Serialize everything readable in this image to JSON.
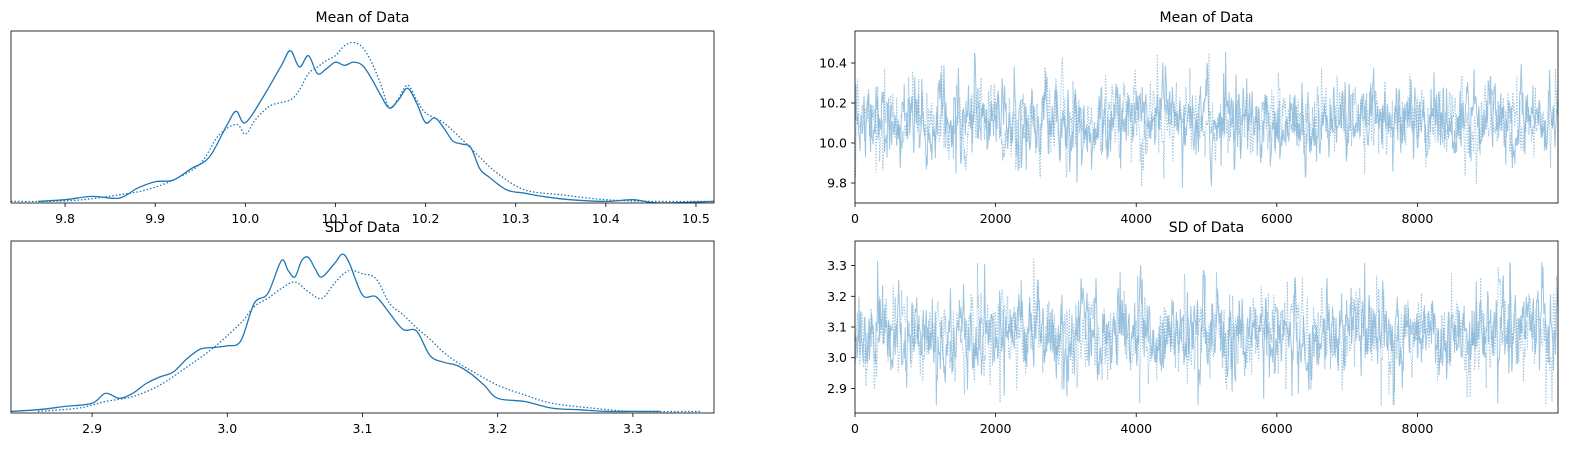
{
  "chart_data": [
    {
      "type": "line",
      "title": "Mean of Data",
      "xlim": [
        9.74,
        10.52
      ],
      "ylim": [
        0,
        1.05
      ],
      "xticks": [
        9.8,
        9.9,
        10.0,
        10.1,
        10.2,
        10.3,
        10.4,
        10.5
      ],
      "xtick_labels": [
        "9.8",
        "9.9",
        "10.0",
        "10.1",
        "10.2",
        "10.3",
        "10.4",
        "10.5"
      ],
      "yticks_shown": false,
      "series": [
        {
          "style": "solid",
          "x": [
            9.77,
            9.8,
            9.83,
            9.86,
            9.88,
            9.9,
            9.92,
            9.94,
            9.96,
            9.98,
            9.99,
            10.0,
            10.02,
            10.04,
            10.05,
            10.06,
            10.07,
            10.08,
            10.09,
            10.1,
            10.11,
            10.12,
            10.13,
            10.14,
            10.15,
            10.16,
            10.17,
            10.18,
            10.19,
            10.2,
            10.21,
            10.22,
            10.23,
            10.24,
            10.25,
            10.26,
            10.27,
            10.29,
            10.31,
            10.33,
            10.36,
            10.4,
            10.43,
            10.46,
            10.52
          ],
          "y": [
            0.01,
            0.02,
            0.04,
            0.03,
            0.09,
            0.13,
            0.14,
            0.21,
            0.28,
            0.48,
            0.56,
            0.49,
            0.65,
            0.84,
            0.93,
            0.83,
            0.9,
            0.79,
            0.82,
            0.86,
            0.84,
            0.86,
            0.84,
            0.76,
            0.66,
            0.58,
            0.63,
            0.7,
            0.61,
            0.49,
            0.52,
            0.46,
            0.38,
            0.36,
            0.34,
            0.21,
            0.16,
            0.08,
            0.06,
            0.04,
            0.02,
            0.01,
            0.02,
            0.0,
            0.01
          ]
        },
        {
          "style": "dotted",
          "x": [
            9.74,
            9.78,
            9.82,
            9.86,
            9.89,
            9.92,
            9.95,
            9.97,
            9.99,
            10.0,
            10.01,
            10.02,
            10.03,
            10.05,
            10.06,
            10.07,
            10.08,
            10.09,
            10.1,
            10.11,
            10.12,
            10.13,
            10.14,
            10.15,
            10.16,
            10.17,
            10.18,
            10.19,
            10.2,
            10.22,
            10.24,
            10.26,
            10.28,
            10.31,
            10.35,
            10.4,
            10.45,
            10.52
          ],
          "y": [
            0.01,
            0.01,
            0.02,
            0.05,
            0.08,
            0.14,
            0.24,
            0.41,
            0.48,
            0.42,
            0.5,
            0.56,
            0.6,
            0.63,
            0.69,
            0.79,
            0.83,
            0.87,
            0.9,
            0.96,
            0.98,
            0.95,
            0.86,
            0.73,
            0.58,
            0.64,
            0.72,
            0.63,
            0.55,
            0.49,
            0.39,
            0.28,
            0.18,
            0.08,
            0.05,
            0.02,
            0.01,
            0.01
          ]
        }
      ]
    },
    {
      "type": "line",
      "title": "Mean of Data",
      "xlim": [
        0,
        9999
      ],
      "ylim": [
        9.7,
        10.56
      ],
      "xticks": [
        0,
        2000,
        4000,
        6000,
        8000
      ],
      "xtick_labels": [
        "0",
        "2000",
        "4000",
        "6000",
        "8000"
      ],
      "yticks": [
        9.8,
        10.0,
        10.2,
        10.4
      ],
      "ytick_labels": [
        "9.8",
        "10.0",
        "10.2",
        "10.4"
      ],
      "trace": {
        "n": 10000,
        "center": 10.11,
        "spread": 0.09,
        "min": 9.74,
        "max": 10.52,
        "chains": 2,
        "color": "#7fb2d6"
      }
    },
    {
      "type": "line",
      "title": "SD of Data",
      "xlim": [
        2.84,
        3.36
      ],
      "ylim": [
        0,
        1.05
      ],
      "xticks": [
        2.9,
        3.0,
        3.1,
        3.2,
        3.3
      ],
      "xtick_labels": [
        "2.9",
        "3.0",
        "3.1",
        "3.2",
        "3.3"
      ],
      "yticks_shown": false,
      "series": [
        {
          "style": "solid",
          "x": [
            2.84,
            2.86,
            2.88,
            2.9,
            2.91,
            2.92,
            2.93,
            2.94,
            2.95,
            2.96,
            2.97,
            2.98,
            2.99,
            3.0,
            3.01,
            3.02,
            3.03,
            3.04,
            3.045,
            3.05,
            3.055,
            3.06,
            3.065,
            3.07,
            3.08,
            3.085,
            3.09,
            3.1,
            3.11,
            3.12,
            3.13,
            3.14,
            3.15,
            3.16,
            3.17,
            3.18,
            3.19,
            3.2,
            3.22,
            3.24,
            3.26,
            3.28,
            3.3,
            3.32
          ],
          "y": [
            0.01,
            0.02,
            0.04,
            0.06,
            0.12,
            0.09,
            0.12,
            0.18,
            0.22,
            0.25,
            0.33,
            0.39,
            0.4,
            0.41,
            0.44,
            0.67,
            0.73,
            0.93,
            0.87,
            0.83,
            0.93,
            0.95,
            0.88,
            0.83,
            0.92,
            0.97,
            0.92,
            0.72,
            0.71,
            0.61,
            0.51,
            0.5,
            0.35,
            0.31,
            0.29,
            0.24,
            0.17,
            0.09,
            0.07,
            0.03,
            0.02,
            0.01,
            0.01,
            0.01
          ]
        },
        {
          "style": "dotted",
          "x": [
            2.86,
            2.89,
            2.91,
            2.93,
            2.95,
            2.97,
            2.99,
            3.01,
            3.02,
            3.03,
            3.04,
            3.05,
            3.06,
            3.07,
            3.08,
            3.09,
            3.1,
            3.11,
            3.12,
            3.13,
            3.14,
            3.15,
            3.16,
            3.17,
            3.18,
            3.2,
            3.22,
            3.24,
            3.27,
            3.3,
            3.35
          ],
          "y": [
            0.01,
            0.03,
            0.07,
            0.1,
            0.17,
            0.28,
            0.4,
            0.55,
            0.65,
            0.7,
            0.76,
            0.8,
            0.74,
            0.7,
            0.8,
            0.87,
            0.85,
            0.82,
            0.67,
            0.6,
            0.52,
            0.45,
            0.37,
            0.31,
            0.26,
            0.17,
            0.11,
            0.06,
            0.03,
            0.01,
            0.01
          ]
        }
      ]
    },
    {
      "type": "line",
      "title": "SD of Data",
      "xlim": [
        0,
        9999
      ],
      "ylim": [
        2.82,
        3.38
      ],
      "xticks": [
        0,
        2000,
        4000,
        6000,
        8000
      ],
      "xtick_labels": [
        "0",
        "2000",
        "4000",
        "6000",
        "8000"
      ],
      "yticks": [
        2.9,
        3.0,
        3.1,
        3.2,
        3.3
      ],
      "ytick_labels": [
        "2.9",
        "3.0",
        "3.1",
        "3.2",
        "3.3"
      ],
      "trace": {
        "n": 10000,
        "center": 3.075,
        "spread": 0.065,
        "min": 2.845,
        "max": 3.35,
        "chains": 2,
        "color": "#7fb2d6"
      }
    }
  ]
}
